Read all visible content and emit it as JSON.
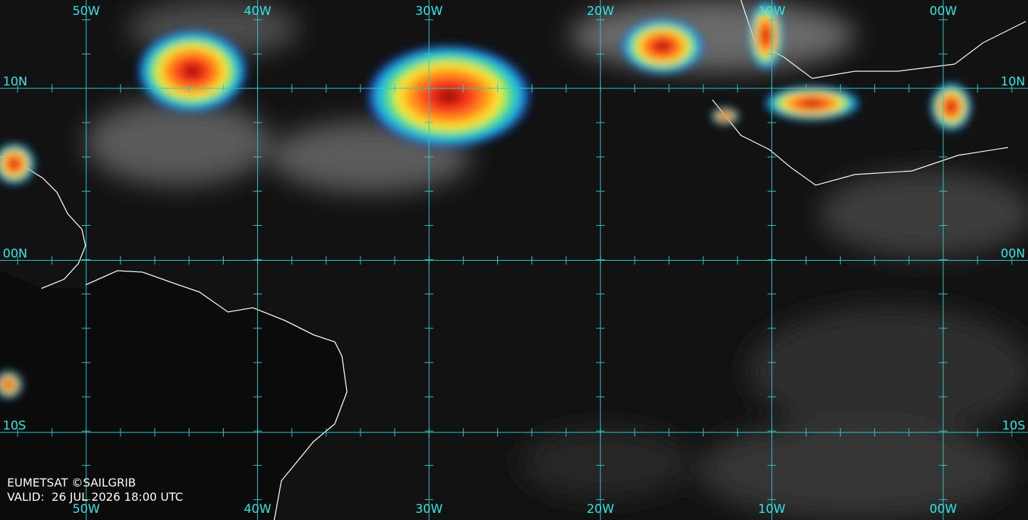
{
  "longitude_labels": [
    "50W",
    "40W",
    "30W",
    "20W",
    "10W",
    "00W"
  ],
  "latitude_labels": [
    "10N",
    "00N",
    "10S"
  ],
  "credit": "EUMETSAT ©SAILGRIB",
  "valid": "VALID:  26 JUL 2026 18:00 UTC"
}
